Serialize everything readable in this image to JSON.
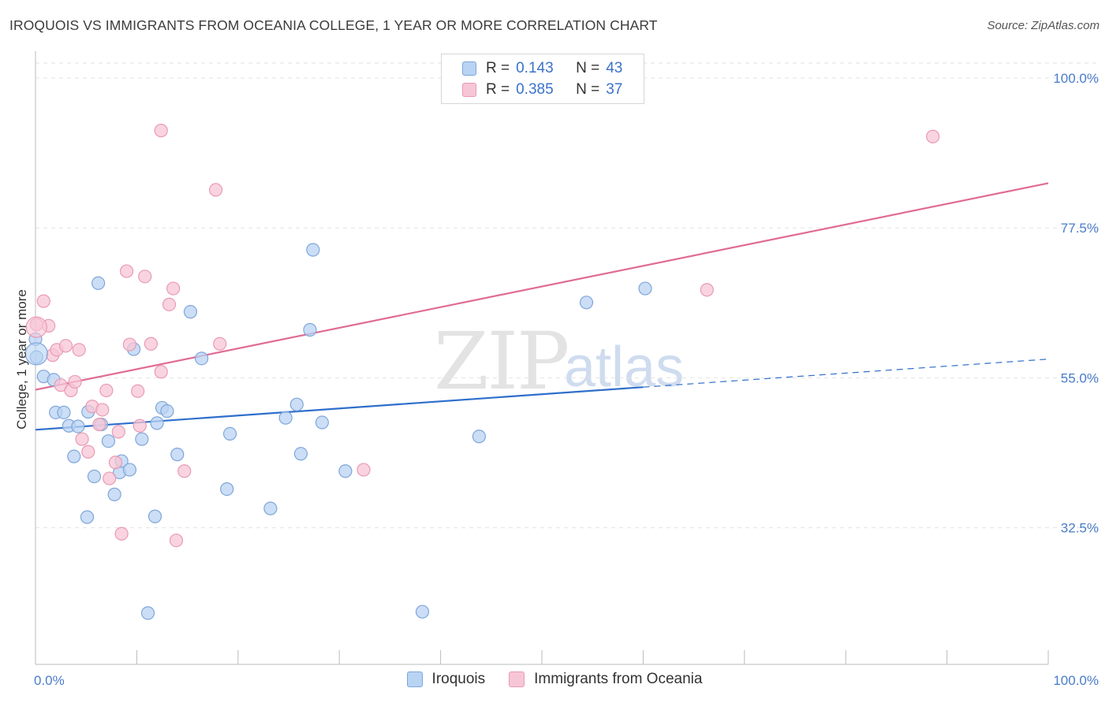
{
  "header": {
    "title": "IROQUOIS VS IMMIGRANTS FROM OCEANIA COLLEGE, 1 YEAR OR MORE CORRELATION CHART",
    "source": "Source: ZipAtlas.com"
  },
  "watermark": {
    "zip": "ZIP",
    "atlas": "atlas"
  },
  "legend": {
    "rows": [
      {
        "r_label": "R =",
        "r_value": "0.143",
        "n_label": "N =",
        "n_value": "43"
      },
      {
        "r_label": "R =",
        "r_value": "0.385",
        "n_label": "N =",
        "n_value": "37"
      }
    ]
  },
  "bottom_legend": {
    "series1": "Iroquois",
    "series2": "Immigrants from Oceania"
  },
  "colors": {
    "blue_fill": "#b9d3f3",
    "blue_stroke": "#7fa6da",
    "blue_line": "#2f6fcb",
    "pink_fill": "#f7c6d6",
    "pink_stroke": "#e99ab4",
    "pink_line": "#e06b95",
    "grid": "#e2e2e2",
    "axis_text": "#4a7cc9"
  },
  "chart_data": {
    "type": "scatter",
    "title": "IROQUOIS VS IMMIGRANTS FROM OCEANIA COLLEGE, 1 YEAR OR MORE CORRELATION CHART",
    "xlabel": "",
    "ylabel": "College, 1 year or more",
    "xlim": [
      0,
      100
    ],
    "ylim": [
      12,
      104
    ],
    "x_tick_labels": [
      "0.0%",
      "100.0%"
    ],
    "y_ticks": [
      32.5,
      55.0,
      77.5,
      100.0
    ],
    "y_tick_labels": [
      "32.5%",
      "55.0%",
      "77.5%",
      "100.0%"
    ],
    "series": [
      {
        "name": "Iroquois",
        "R": 0.143,
        "N": 43,
        "trend": {
          "x0": 0,
          "y0": 47.2,
          "x1": 60,
          "y1": 53.6,
          "dash_x1": 100,
          "dash_y1": 57.8
        },
        "points": [
          [
            0.0,
            60.8
          ],
          [
            0.8,
            55.2
          ],
          [
            1.8,
            54.7
          ],
          [
            2.0,
            49.8
          ],
          [
            2.8,
            49.8
          ],
          [
            3.3,
            47.8
          ],
          [
            3.8,
            43.2
          ],
          [
            4.2,
            47.7
          ],
          [
            5.1,
            34.1
          ],
          [
            5.2,
            49.9
          ],
          [
            5.8,
            40.2
          ],
          [
            6.2,
            69.2
          ],
          [
            6.5,
            48.0
          ],
          [
            7.2,
            45.5
          ],
          [
            7.8,
            37.5
          ],
          [
            8.3,
            40.8
          ],
          [
            8.5,
            42.5
          ],
          [
            9.3,
            41.2
          ],
          [
            9.7,
            59.3
          ],
          [
            10.5,
            45.8
          ],
          [
            11.1,
            19.7
          ],
          [
            11.8,
            34.2
          ],
          [
            12.0,
            48.2
          ],
          [
            12.5,
            50.5
          ],
          [
            13.0,
            50.0
          ],
          [
            14.0,
            43.5
          ],
          [
            15.3,
            64.9
          ],
          [
            16.4,
            57.9
          ],
          [
            18.9,
            38.3
          ],
          [
            19.2,
            46.6
          ],
          [
            23.2,
            35.4
          ],
          [
            24.7,
            49.0
          ],
          [
            25.8,
            51.0
          ],
          [
            26.2,
            43.6
          ],
          [
            27.1,
            62.2
          ],
          [
            27.4,
            74.2
          ],
          [
            28.3,
            48.3
          ],
          [
            30.6,
            41.0
          ],
          [
            38.2,
            19.9
          ],
          [
            43.8,
            46.2
          ],
          [
            54.4,
            66.3
          ],
          [
            60.2,
            68.4
          ],
          [
            0.1,
            58.1
          ]
        ]
      },
      {
        "name": "Immigrants from Oceania",
        "R": 0.385,
        "N": 37,
        "trend": {
          "x0": 0,
          "y0": 53.2,
          "x1": 100,
          "y1": 84.2
        },
        "points": [
          [
            0.1,
            63.0
          ],
          [
            0.8,
            66.5
          ],
          [
            1.3,
            62.8
          ],
          [
            1.7,
            58.4
          ],
          [
            2.1,
            59.2
          ],
          [
            2.5,
            53.9
          ],
          [
            3.0,
            59.8
          ],
          [
            3.5,
            53.1
          ],
          [
            3.9,
            54.4
          ],
          [
            4.3,
            59.2
          ],
          [
            4.6,
            45.8
          ],
          [
            5.2,
            43.9
          ],
          [
            5.6,
            50.7
          ],
          [
            6.3,
            48.0
          ],
          [
            6.6,
            50.2
          ],
          [
            7.0,
            53.1
          ],
          [
            7.3,
            39.9
          ],
          [
            7.9,
            42.3
          ],
          [
            8.2,
            46.9
          ],
          [
            8.5,
            31.6
          ],
          [
            9.0,
            71.0
          ],
          [
            9.3,
            60.0
          ],
          [
            10.1,
            53.0
          ],
          [
            10.3,
            47.8
          ],
          [
            10.8,
            70.2
          ],
          [
            11.4,
            60.1
          ],
          [
            12.4,
            92.1
          ],
          [
            12.4,
            55.9
          ],
          [
            13.2,
            66.0
          ],
          [
            13.6,
            68.4
          ],
          [
            13.9,
            30.6
          ],
          [
            14.7,
            41.0
          ],
          [
            17.8,
            83.2
          ],
          [
            18.2,
            60.1
          ],
          [
            32.4,
            41.2
          ],
          [
            66.3,
            68.2
          ],
          [
            88.6,
            91.2
          ]
        ]
      }
    ]
  }
}
